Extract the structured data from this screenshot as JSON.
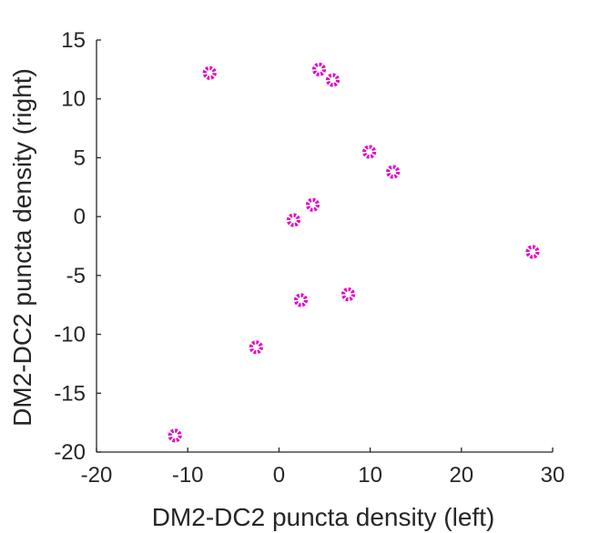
{
  "chart_data": {
    "type": "scatter",
    "xlabel": "DM2-DC2 puncta density (left)",
    "ylabel": "DM2-DC2 puncta density (right)",
    "xlim": [
      -20,
      30
    ],
    "ylim": [
      -20,
      15
    ],
    "xticks": [
      -20,
      -10,
      0,
      10,
      20,
      30
    ],
    "yticks": [
      -20,
      -15,
      -10,
      -5,
      0,
      5,
      10,
      15
    ],
    "xtick_labels": [
      "-20",
      "-10",
      "0",
      "10",
      "20",
      "30"
    ],
    "ytick_labels": [
      "-20",
      "-15",
      "-10",
      "-5",
      "0",
      "5",
      "10",
      "15"
    ],
    "marker_color": "#e600c8",
    "grid": false,
    "points": [
      {
        "x": -7.6,
        "y": 12.2
      },
      {
        "x": 4.4,
        "y": 12.5
      },
      {
        "x": 5.9,
        "y": 11.6
      },
      {
        "x": 9.9,
        "y": 5.5
      },
      {
        "x": 12.5,
        "y": 3.8
      },
      {
        "x": 3.7,
        "y": 1.0
      },
      {
        "x": 1.6,
        "y": -0.3
      },
      {
        "x": 27.8,
        "y": -3.0
      },
      {
        "x": 7.6,
        "y": -6.6
      },
      {
        "x": 2.4,
        "y": -7.1
      },
      {
        "x": -2.5,
        "y": -11.1
      },
      {
        "x": -11.4,
        "y": -18.6
      }
    ]
  }
}
